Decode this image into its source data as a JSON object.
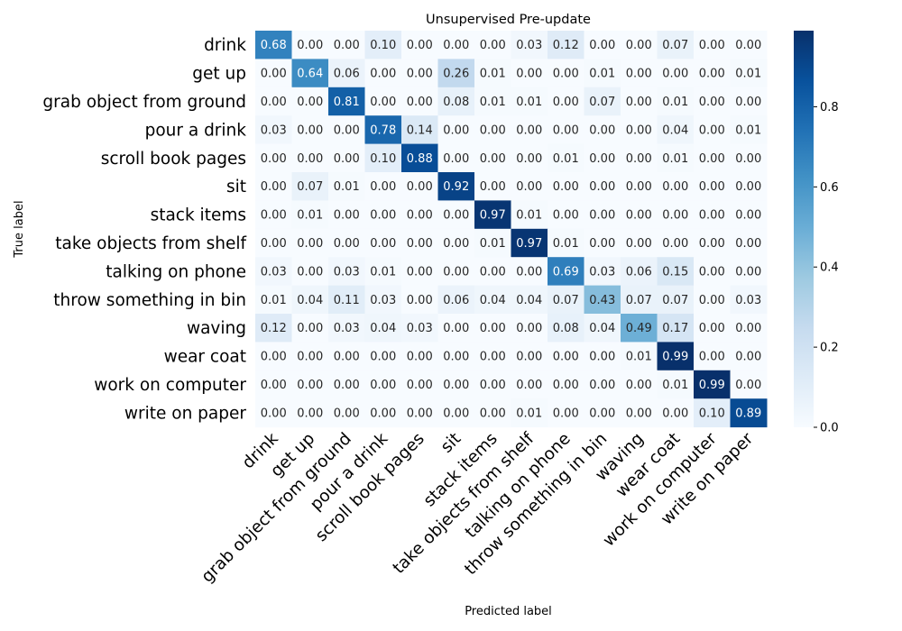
{
  "chart_data": {
    "type": "heatmap",
    "title": "Unsupervised Pre-update",
    "xlabel": "Predicted label",
    "ylabel": "True label",
    "labels": [
      "drink",
      "get up",
      "grab object from ground",
      "pour a drink",
      "scroll book pages",
      "sit",
      "stack items",
      "take objects from shelf",
      "talking on phone",
      "throw something in bin",
      "waving",
      "wear coat",
      "work on computer",
      "write on paper"
    ],
    "values": [
      [
        0.68,
        0.0,
        0.0,
        0.1,
        0.0,
        0.0,
        0.0,
        0.03,
        0.12,
        0.0,
        0.0,
        0.07,
        0.0,
        0.0
      ],
      [
        0.0,
        0.64,
        0.06,
        0.0,
        0.0,
        0.26,
        0.01,
        0.0,
        0.0,
        0.01,
        0.0,
        0.0,
        0.0,
        0.01
      ],
      [
        0.0,
        0.0,
        0.81,
        0.0,
        0.0,
        0.08,
        0.01,
        0.01,
        0.0,
        0.07,
        0.0,
        0.01,
        0.0,
        0.0
      ],
      [
        0.03,
        0.0,
        0.0,
        0.78,
        0.14,
        0.0,
        0.0,
        0.0,
        0.0,
        0.0,
        0.0,
        0.04,
        0.0,
        0.01
      ],
      [
        0.0,
        0.0,
        0.0,
        0.1,
        0.88,
        0.0,
        0.0,
        0.0,
        0.01,
        0.0,
        0.0,
        0.01,
        0.0,
        0.0
      ],
      [
        0.0,
        0.07,
        0.01,
        0.0,
        0.0,
        0.92,
        0.0,
        0.0,
        0.0,
        0.0,
        0.0,
        0.0,
        0.0,
        0.0
      ],
      [
        0.0,
        0.01,
        0.0,
        0.0,
        0.0,
        0.0,
        0.97,
        0.01,
        0.0,
        0.0,
        0.0,
        0.0,
        0.0,
        0.0
      ],
      [
        0.0,
        0.0,
        0.0,
        0.0,
        0.0,
        0.0,
        0.01,
        0.97,
        0.01,
        0.0,
        0.0,
        0.0,
        0.0,
        0.0
      ],
      [
        0.03,
        0.0,
        0.03,
        0.01,
        0.0,
        0.0,
        0.0,
        0.0,
        0.69,
        0.03,
        0.06,
        0.15,
        0.0,
        0.0
      ],
      [
        0.01,
        0.04,
        0.11,
        0.03,
        0.0,
        0.06,
        0.04,
        0.04,
        0.07,
        0.43,
        0.07,
        0.07,
        0.0,
        0.03
      ],
      [
        0.12,
        0.0,
        0.03,
        0.04,
        0.03,
        0.0,
        0.0,
        0.0,
        0.08,
        0.04,
        0.49,
        0.17,
        0.0,
        0.0
      ],
      [
        0.0,
        0.0,
        0.0,
        0.0,
        0.0,
        0.0,
        0.0,
        0.0,
        0.0,
        0.0,
        0.01,
        0.99,
        0.0,
        0.0
      ],
      [
        0.0,
        0.0,
        0.0,
        0.0,
        0.0,
        0.0,
        0.0,
        0.0,
        0.0,
        0.0,
        0.0,
        0.01,
        0.99,
        0.0
      ],
      [
        0.0,
        0.0,
        0.0,
        0.0,
        0.0,
        0.0,
        0.0,
        0.01,
        0.0,
        0.0,
        0.0,
        0.0,
        0.1,
        0.89
      ]
    ],
    "colorbar": {
      "range": [
        0.0,
        0.99
      ],
      "ticks": [
        "0.0",
        "0.2",
        "0.4",
        "0.6",
        "0.8"
      ],
      "colormap": "Blues"
    }
  }
}
